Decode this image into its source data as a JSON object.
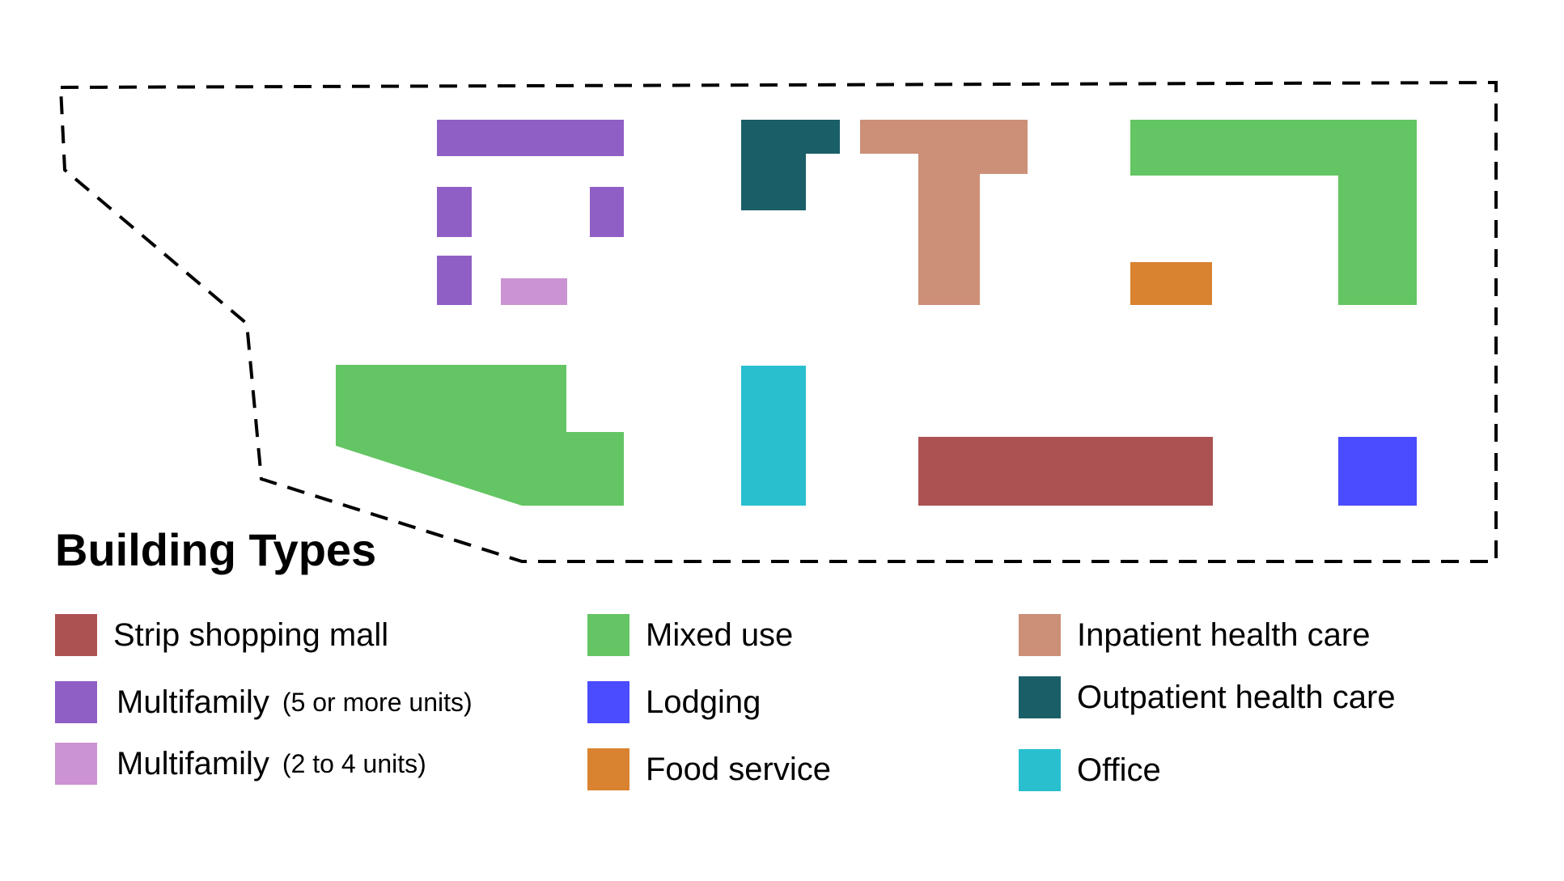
{
  "legend": {
    "title": "Building Types",
    "items": [
      {
        "key": "strip-shopping-mall",
        "label": "Strip shopping mall",
        "note": "",
        "color": "#ad5252"
      },
      {
        "key": "multifamily-5-plus",
        "label": "Multifamily",
        "note": "(5 or more units)",
        "color": "#8f5fc5"
      },
      {
        "key": "multifamily-2-4",
        "label": "Multifamily",
        "note": "(2 to 4 units)",
        "color": "#cb93d2"
      },
      {
        "key": "mixed-use",
        "label": "Mixed use",
        "note": "",
        "color": "#63c563"
      },
      {
        "key": "lodging",
        "label": "Lodging",
        "note": "",
        "color": "#4b4bff"
      },
      {
        "key": "food-service",
        "label": "Food service",
        "note": "",
        "color": "#d98330"
      },
      {
        "key": "inpatient-health-care",
        "label": "Inpatient health care",
        "note": "",
        "color": "#cc8f77"
      },
      {
        "key": "outpatient-health-care",
        "label": "Outpatient health care",
        "note": "",
        "color": "#1a5e68"
      },
      {
        "key": "office",
        "label": "Office",
        "note": "",
        "color": "#29bfcf"
      }
    ]
  },
  "boundary": {
    "color": "#000000",
    "style": "dashed"
  }
}
